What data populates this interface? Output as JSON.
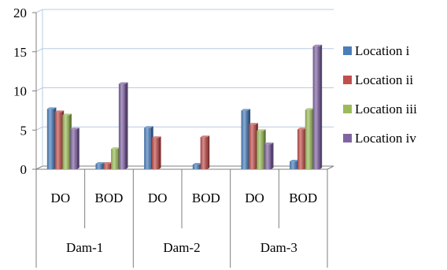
{
  "chart_data": {
    "type": "bar",
    "groups": [
      {
        "name": "Dam-1",
        "categories": [
          "DO",
          "BOD"
        ]
      },
      {
        "name": "Dam-2",
        "categories": [
          "DO",
          "BOD"
        ]
      },
      {
        "name": "Dam-3",
        "categories": [
          "DO",
          "BOD"
        ]
      }
    ],
    "categories": [
      "DO",
      "BOD",
      "DO",
      "BOD",
      "DO",
      "BOD"
    ],
    "series": [
      {
        "name": "Location i",
        "color": "#4a7ebb",
        "values": [
          7.7,
          0.7,
          5.3,
          0.6,
          7.5,
          1.0
        ]
      },
      {
        "name": "Location ii",
        "color": "#c0504d",
        "values": [
          7.3,
          0.7,
          4.0,
          4.1,
          5.7,
          5.1
        ]
      },
      {
        "name": "Location iii",
        "color": "#9bbb59",
        "values": [
          6.9,
          2.6,
          0,
          0,
          4.9,
          7.6
        ]
      },
      {
        "name": "Location iv",
        "color": "#8064a2",
        "values": [
          5.1,
          10.9,
          0,
          0,
          3.2,
          15.7
        ]
      }
    ],
    "y_ticks": [
      0,
      5,
      10,
      15,
      20
    ],
    "ylim": [
      0,
      20
    ],
    "legend_position": "right",
    "grid": true,
    "title": "",
    "xlabel": "",
    "ylabel": ""
  }
}
